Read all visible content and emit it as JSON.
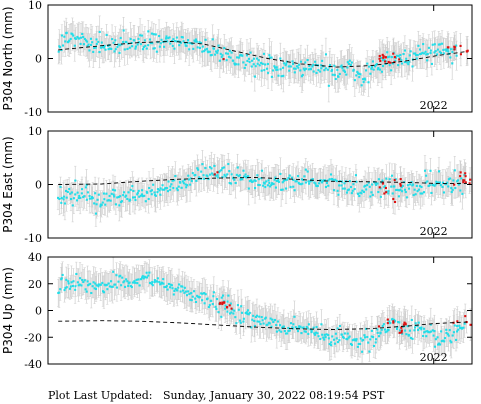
{
  "chart_data": [
    {
      "type": "scatter",
      "ylabel": "P304 North (mm)",
      "ylim": [
        -10,
        10
      ],
      "yticks": [
        -10,
        0,
        10
      ],
      "xtick_labels": [
        {
          "x": 2022.0,
          "label": "2022"
        }
      ],
      "xlim": [
        2020.49,
        2022.15
      ],
      "grid": false,
      "series": [
        {
          "role": "cyan-points",
          "color": "#22dde8",
          "anchors": [
            [
              2020.53,
              2.2
            ],
            [
              2020.58,
              4.2
            ],
            [
              2020.64,
              3.2
            ],
            [
              2020.7,
              2.0
            ],
            [
              2020.76,
              2.6
            ],
            [
              2020.82,
              3.3
            ],
            [
              2020.9,
              3.0
            ],
            [
              2020.96,
              3.3
            ],
            [
              2021.02,
              2.9
            ],
            [
              2021.08,
              2.4
            ],
            [
              2021.14,
              1.1
            ],
            [
              2021.2,
              0.3
            ],
            [
              2021.26,
              -0.6
            ],
            [
              2021.32,
              -1.2
            ],
            [
              2021.38,
              -1.8
            ],
            [
              2021.44,
              -1.9
            ],
            [
              2021.5,
              -1.8
            ],
            [
              2021.56,
              -1.4
            ],
            [
              2021.62,
              -2.2
            ],
            [
              2021.68,
              -1.5
            ],
            [
              2021.72,
              -4.0
            ],
            [
              2021.76,
              -1.6
            ],
            [
              2021.8,
              -0.8
            ],
            [
              2021.86,
              0.5
            ],
            [
              2021.92,
              0.4
            ],
            [
              2021.98,
              1.1
            ],
            [
              2022.04,
              1.3
            ],
            [
              2022.09,
              1.6
            ]
          ],
          "count": 420,
          "scatter": 0.9
        },
        {
          "role": "red-points",
          "color": "#dd1111",
          "anchors": [
            [
              2021.19,
              -0.2
            ],
            [
              2021.8,
              0.4
            ],
            [
              2021.82,
              -0.6
            ],
            [
              2021.84,
              0.8
            ],
            [
              2021.86,
              -0.7
            ],
            [
              2022.07,
              1.8
            ],
            [
              2022.1,
              2.6
            ],
            [
              2022.12,
              1.4
            ]
          ],
          "count": 26,
          "scatter": 0.8
        },
        {
          "role": "model-dashed-line",
          "color": "#000000",
          "points": [
            [
              2020.53,
              1.6
            ],
            [
              2020.7,
              2.4
            ],
            [
              2020.85,
              3.0
            ],
            [
              2020.98,
              3.2
            ],
            [
              2021.1,
              2.7
            ],
            [
              2021.22,
              1.4
            ],
            [
              2021.35,
              0.0
            ],
            [
              2021.48,
              -1.0
            ],
            [
              2021.62,
              -1.6
            ],
            [
              2021.76,
              -1.3
            ],
            [
              2021.9,
              -0.4
            ],
            [
              2022.02,
              0.6
            ],
            [
              2022.13,
              1.3
            ]
          ]
        }
      ]
    },
    {
      "type": "scatter",
      "ylabel": "P304 East (mm)",
      "ylim": [
        -10,
        10
      ],
      "yticks": [
        -10,
        0,
        10
      ],
      "xtick_labels": [
        {
          "x": 2022.0,
          "label": "2022"
        }
      ],
      "xlim": [
        2020.49,
        2022.15
      ],
      "grid": false,
      "series": [
        {
          "role": "cyan-points",
          "color": "#22dde8",
          "anchors": [
            [
              2020.53,
              -2.0
            ],
            [
              2020.58,
              -2.6
            ],
            [
              2020.64,
              -1.6
            ],
            [
              2020.7,
              -3.2
            ],
            [
              2020.76,
              -2.6
            ],
            [
              2020.82,
              -1.8
            ],
            [
              2020.88,
              -1.4
            ],
            [
              2020.94,
              -0.8
            ],
            [
              2021.0,
              0.3
            ],
            [
              2021.06,
              0.8
            ],
            [
              2021.12,
              1.8
            ],
            [
              2021.18,
              1.7
            ],
            [
              2021.24,
              1.2
            ],
            [
              2021.3,
              0.6
            ],
            [
              2021.36,
              0.4
            ],
            [
              2021.42,
              0.6
            ],
            [
              2021.48,
              1.0
            ],
            [
              2021.54,
              0.4
            ],
            [
              2021.6,
              0.2
            ],
            [
              2021.66,
              -0.8
            ],
            [
              2021.72,
              -0.3
            ],
            [
              2021.78,
              -0.6
            ],
            [
              2021.84,
              -0.5
            ],
            [
              2021.9,
              -1.0
            ],
            [
              2021.96,
              0.0
            ],
            [
              2022.02,
              0.2
            ],
            [
              2022.08,
              0.4
            ],
            [
              2022.12,
              0.3
            ]
          ],
          "count": 420,
          "scatter": 0.9
        },
        {
          "role": "red-points",
          "color": "#dd1111",
          "anchors": [
            [
              2021.15,
              1.8
            ],
            [
              2021.8,
              -0.6
            ],
            [
              2021.82,
              -1.6
            ],
            [
              2021.84,
              -3.0
            ],
            [
              2021.86,
              0.4
            ],
            [
              2022.08,
              1.0
            ],
            [
              2022.11,
              1.8
            ],
            [
              2022.13,
              0.9
            ]
          ],
          "count": 24,
          "scatter": 0.8
        },
        {
          "role": "model-dashed-line",
          "color": "#000000",
          "points": [
            [
              2020.53,
              0.0
            ],
            [
              2020.7,
              0.1
            ],
            [
              2020.85,
              0.6
            ],
            [
              2021.0,
              1.0
            ],
            [
              2021.15,
              1.2
            ],
            [
              2021.3,
              1.3
            ],
            [
              2021.45,
              1.0
            ],
            [
              2021.6,
              0.6
            ],
            [
              2021.75,
              0.5
            ],
            [
              2021.9,
              0.4
            ],
            [
              2022.0,
              0.2
            ],
            [
              2022.13,
              0.2
            ]
          ]
        }
      ]
    },
    {
      "type": "scatter",
      "ylabel": "P304 Up (mm)",
      "ylim": [
        -40,
        40
      ],
      "yticks": [
        -40,
        -20,
        0,
        20,
        40
      ],
      "xtick_labels": [
        {
          "x": 2022.0,
          "label": "2022"
        }
      ],
      "xlim": [
        2020.49,
        2022.15
      ],
      "grid": false,
      "series": [
        {
          "role": "cyan-points",
          "color": "#22dde8",
          "anchors": [
            [
              2020.53,
              18.0
            ],
            [
              2020.58,
              21.0
            ],
            [
              2020.64,
              20.0
            ],
            [
              2020.7,
              17.0
            ],
            [
              2020.76,
              22.0
            ],
            [
              2020.82,
              21.0
            ],
            [
              2020.88,
              24.0
            ],
            [
              2020.94,
              20.0
            ],
            [
              2021.0,
              15.0
            ],
            [
              2021.06,
              12.0
            ],
            [
              2021.12,
              7.0
            ],
            [
              2021.18,
              3.0
            ],
            [
              2021.24,
              -2.0
            ],
            [
              2021.3,
              -6.0
            ],
            [
              2021.36,
              -10.0
            ],
            [
              2021.42,
              -13.0
            ],
            [
              2021.48,
              -12.0
            ],
            [
              2021.54,
              -17.0
            ],
            [
              2021.6,
              -22.0
            ],
            [
              2021.66,
              -20.0
            ],
            [
              2021.72,
              -24.0
            ],
            [
              2021.78,
              -20.0
            ],
            [
              2021.84,
              -10.0
            ],
            [
              2021.9,
              -16.0
            ],
            [
              2021.96,
              -12.0
            ],
            [
              2022.02,
              -20.0
            ],
            [
              2022.08,
              -16.0
            ],
            [
              2022.12,
              -12.0
            ]
          ],
          "count": 420,
          "scatter": 3.2
        },
        {
          "role": "red-points",
          "color": "#dd1111",
          "anchors": [
            [
              2021.17,
              6.0
            ],
            [
              2021.2,
              2.0
            ],
            [
              2021.8,
              -12.0
            ],
            [
              2021.83,
              -8.0
            ],
            [
              2021.86,
              -16.0
            ],
            [
              2021.88,
              -11.0
            ],
            [
              2022.08,
              -10.0
            ],
            [
              2022.11,
              -5.0
            ],
            [
              2022.13,
              -9.0
            ]
          ],
          "count": 28,
          "scatter": 2.5
        },
        {
          "role": "model-dashed-line",
          "color": "#000000",
          "points": [
            [
              2020.53,
              -8.0
            ],
            [
              2020.7,
              -7.6
            ],
            [
              2020.85,
              -8.0
            ],
            [
              2021.0,
              -9.2
            ],
            [
              2021.15,
              -10.8
            ],
            [
              2021.3,
              -12.4
            ],
            [
              2021.45,
              -13.6
            ],
            [
              2021.6,
              -14.2
            ],
            [
              2021.75,
              -13.6
            ],
            [
              2021.9,
              -11.6
            ],
            [
              2022.0,
              -9.8
            ],
            [
              2022.13,
              -8.6
            ]
          ]
        }
      ]
    }
  ],
  "footer": {
    "label": "Plot Last Updated:",
    "value": "Sunday, January 30, 2022 08:19:54 PST"
  }
}
